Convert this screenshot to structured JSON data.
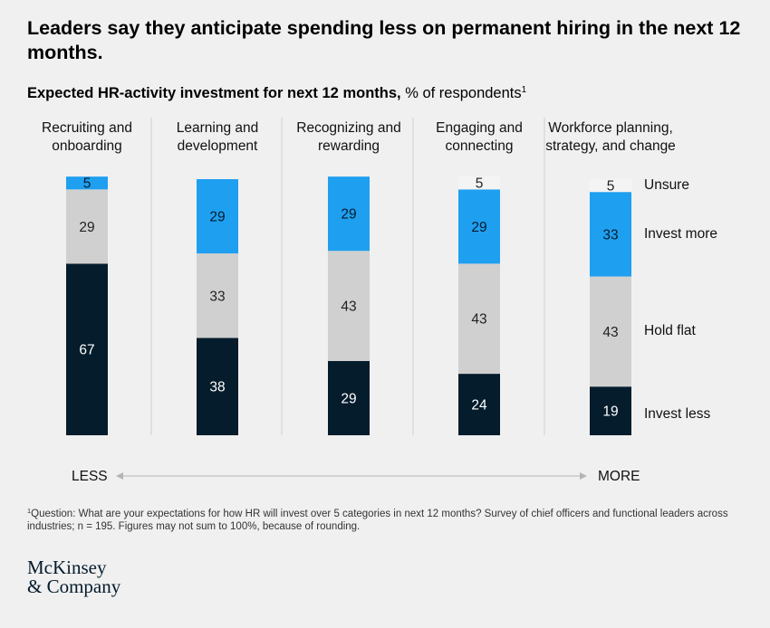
{
  "title": "Leaders say they anticipate spending less on permanent hiring in the next 12 months.",
  "subtitle": {
    "bold": "Expected HR-activity investment for next 12 months,",
    "normal": " % of respondents",
    "sup": "1"
  },
  "chart_data": {
    "type": "bar",
    "stacked": true,
    "orientation": "vertical",
    "categories": [
      [
        "Recruiting and",
        "onboarding"
      ],
      [
        "Learning and",
        "development"
      ],
      [
        "Recognizing and",
        "rewarding"
      ],
      [
        "Engaging and",
        "connecting"
      ],
      [
        "Workforce planning,",
        "strategy, and change"
      ]
    ],
    "series": [
      {
        "name": "Invest less",
        "color": "#051c2c",
        "label_color": "#ffffff",
        "values": [
          67,
          38,
          29,
          24,
          19
        ]
      },
      {
        "name": "Hold flat",
        "color": "#d0d0d0",
        "label_color": "#222222",
        "values": [
          29,
          33,
          43,
          43,
          43
        ]
      },
      {
        "name": "Invest more",
        "color": "#1f9ff0",
        "label_color": "#051c2c",
        "values": [
          5,
          29,
          29,
          29,
          33
        ]
      },
      {
        "name": "Unsure",
        "color": "#f4f4f4",
        "label_color": "#222222",
        "values": [
          0,
          0,
          0,
          5,
          5
        ]
      }
    ],
    "legend_placement": "right",
    "ylim": [
      0,
      100
    ],
    "grid": false,
    "axis_words": {
      "left": "LESS",
      "right": "MORE"
    }
  },
  "footnote": {
    "sup": "1",
    "text": "Question: What are your expectations for how HR will invest over 5 categories in next 12 months? Survey of chief officers and functional leaders across industries; n = 195. Figures may not sum to 100%, because of rounding."
  },
  "logo": {
    "line1": "McKinsey",
    "line2": "& Company"
  }
}
